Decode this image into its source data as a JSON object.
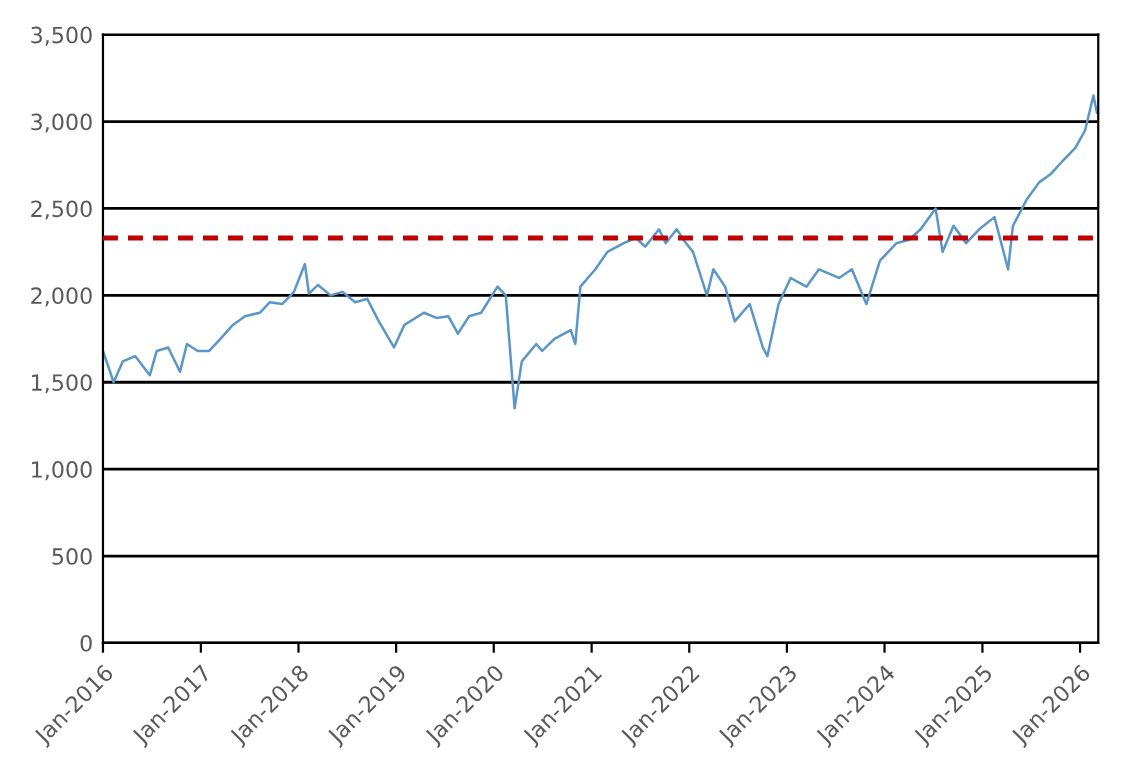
{
  "chart_data": {
    "type": "line",
    "x": [
      "2016-01-01",
      "2016-02-10",
      "2016-03-15",
      "2016-05-01",
      "2016-06-24",
      "2016-07-20",
      "2016-09-01",
      "2016-10-15",
      "2016-11-10",
      "2016-12-20",
      "2017-02-01",
      "2017-03-15",
      "2017-05-01",
      "2017-06-15",
      "2017-08-10",
      "2017-09-15",
      "2017-11-01",
      "2017-12-15",
      "2018-01-25",
      "2018-02-09",
      "2018-03-15",
      "2018-05-01",
      "2018-06-15",
      "2018-08-01",
      "2018-09-15",
      "2018-10-25",
      "2018-12-24",
      "2019-02-01",
      "2019-04-15",
      "2019-06-01",
      "2019-07-15",
      "2019-08-20",
      "2019-10-01",
      "2019-11-15",
      "2020-01-15",
      "2020-02-15",
      "2020-03-19",
      "2020-04-15",
      "2020-06-08",
      "2020-06-30",
      "2020-08-15",
      "2020-10-15",
      "2020-11-01",
      "2020-11-20",
      "2021-01-15",
      "2021-03-01",
      "2021-05-01",
      "2021-06-15",
      "2021-07-20",
      "2021-09-10",
      "2021-10-05",
      "2021-11-15",
      "2021-12-15",
      "2022-01-15",
      "2022-03-08",
      "2022-04-01",
      "2022-05-15",
      "2022-06-20",
      "2022-08-15",
      "2022-10-03",
      "2022-10-20",
      "2022-12-01",
      "2023-01-15",
      "2023-03-15",
      "2023-05-01",
      "2023-07-15",
      "2023-09-01",
      "2023-10-25",
      "2023-12-15",
      "2024-02-15",
      "2024-04-01",
      "2024-05-15",
      "2024-07-10",
      "2024-08-05",
      "2024-09-15",
      "2024-11-01",
      "2024-12-20",
      "2025-02-15",
      "2025-04-07",
      "2025-04-25",
      "2025-06-15",
      "2025-08-01",
      "2025-09-15",
      "2025-11-01",
      "2025-12-15",
      "2026-01-20",
      "2026-02-20",
      "2026-03-05"
    ],
    "values": [
      1680,
      1500,
      1620,
      1650,
      1540,
      1680,
      1700,
      1560,
      1720,
      1680,
      1680,
      1750,
      1830,
      1880,
      1900,
      1960,
      1950,
      2020,
      2180,
      2010,
      2060,
      2000,
      2020,
      1960,
      1980,
      1860,
      1700,
      1830,
      1900,
      1870,
      1880,
      1780,
      1880,
      1900,
      2050,
      2000,
      1350,
      1620,
      1720,
      1680,
      1750,
      1800,
      1720,
      2050,
      2150,
      2250,
      2300,
      2330,
      2280,
      2380,
      2300,
      2380,
      2310,
      2250,
      2000,
      2150,
      2050,
      1850,
      1950,
      1700,
      1650,
      1950,
      2100,
      2050,
      2150,
      2100,
      2150,
      1950,
      2200,
      2300,
      2320,
      2380,
      2500,
      2250,
      2400,
      2300,
      2380,
      2450,
      2150,
      2400,
      2550,
      2650,
      2700,
      2780,
      2850,
      2950,
      3150,
      3050
    ],
    "color": "#5b96c8",
    "xlim": [
      "2016-01-01",
      "2026-03-10"
    ],
    "xticks": [
      {
        "value": "2016-01-01",
        "label": "Jan-2016"
      },
      {
        "value": "2017-01-01",
        "label": "Jan-2017"
      },
      {
        "value": "2018-01-01",
        "label": "Jan-2018"
      },
      {
        "value": "2019-01-01",
        "label": "Jan-2019"
      },
      {
        "value": "2020-01-01",
        "label": "Jan-2020"
      },
      {
        "value": "2021-01-01",
        "label": "Jan-2021"
      },
      {
        "value": "2022-01-01",
        "label": "Jan-2022"
      },
      {
        "value": "2023-01-01",
        "label": "Jan-2023"
      },
      {
        "value": "2024-01-01",
        "label": "Jan-2024"
      },
      {
        "value": "2025-01-01",
        "label": "Jan-2025"
      },
      {
        "value": "2026-01-01",
        "label": "Jan-2026"
      }
    ],
    "ylim": [
      0,
      3500
    ],
    "yticks": [
      {
        "value": 0,
        "label": "0"
      },
      {
        "value": 500,
        "label": "500"
      },
      {
        "value": 1000,
        "label": "1,000"
      },
      {
        "value": 1500,
        "label": "1,500"
      },
      {
        "value": 2000,
        "label": "2,000"
      },
      {
        "value": 2500,
        "label": "2,500"
      },
      {
        "value": 3000,
        "label": "3,000"
      },
      {
        "value": 3500,
        "label": "3,500"
      }
    ],
    "grid": "y",
    "ref_lines": [
      {
        "axis": "y",
        "value": 2330,
        "color": "#c00000",
        "line_style": "dashed"
      }
    ]
  }
}
